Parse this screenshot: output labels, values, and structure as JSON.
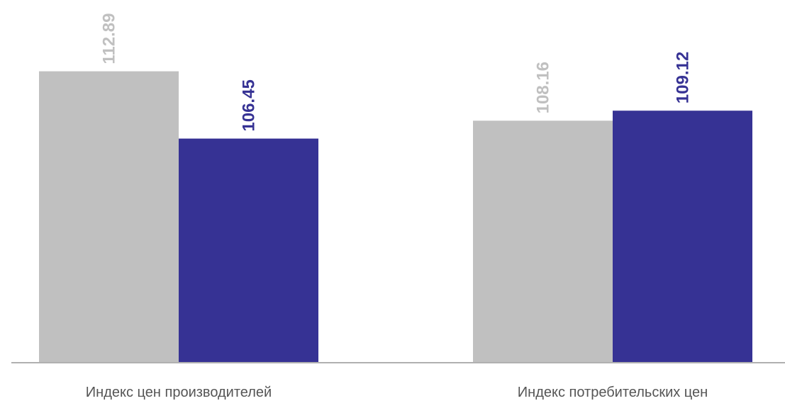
{
  "colors": {
    "series_1": "#c0c0c0",
    "series_2": "#363294",
    "axis_line": "#b0b0b0"
  },
  "chart_data": {
    "type": "bar",
    "title": "",
    "xlabel": "",
    "ylabel": "",
    "categories": [
      "Индекс цен производителей",
      "Индекс потребительских цен"
    ],
    "series": [
      {
        "values": [
          112.89,
          108.16
        ]
      },
      {
        "values": [
          106.45,
          109.12
        ]
      }
    ],
    "value_labels": [
      [
        "112.89",
        "108.16"
      ],
      [
        "106.45",
        "109.12"
      ]
    ],
    "grid": false,
    "legend": "none",
    "ylim": [
      85,
      117
    ]
  }
}
